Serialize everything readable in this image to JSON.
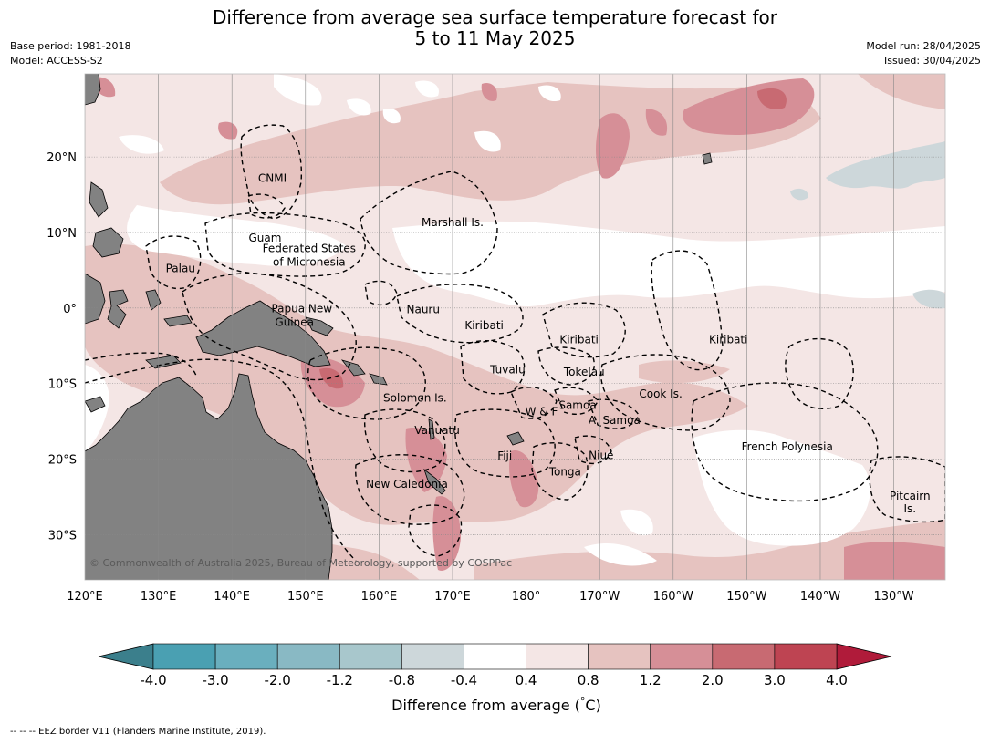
{
  "title_line1": "Difference from average sea surface temperature forecast for",
  "title_line2": "5 to 11 May 2025",
  "base_period": "Base period: 1981-2018",
  "model": "Model: ACCESS-S2",
  "model_run": "Model run: 28/04/2025",
  "issued": "Issued: 30/04/2025",
  "copyright": "© Commonwealth of Australia 2025, Bureau of Meteorology, supported by COSPPac",
  "footnote": "--  --  -- EEZ border V11 (Flanders Marine Institute, 2019).",
  "map": {
    "lon_ticks": [
      "120°E",
      "130°E",
      "140°E",
      "150°E",
      "160°E",
      "170°E",
      "180°",
      "170°W",
      "160°W",
      "150°W",
      "140°W",
      "130°W"
    ],
    "lon_values": [
      120,
      130,
      140,
      150,
      160,
      170,
      180,
      190,
      200,
      210,
      220,
      230
    ],
    "lat_ticks": [
      "20°N",
      "10°N",
      "0°",
      "10°S",
      "20°S",
      "30°S"
    ],
    "lat_values": [
      20,
      10,
      0,
      -10,
      -20,
      -30
    ],
    "lon_range": [
      120,
      237
    ],
    "lat_range": [
      -36,
      31
    ],
    "colors": {
      "ocean_base": "#f4e6e5",
      "land": "#828282",
      "grid": "#888888"
    },
    "regions": [
      {
        "name": "CNMI",
        "lon": 145.5,
        "lat": 17.2
      },
      {
        "name": "Guam",
        "lon": 144.5,
        "lat": 9.3
      },
      {
        "name": "Marshall Is.",
        "lon": 170,
        "lat": 11.3
      },
      {
        "name": "Federated States",
        "lon": 150.5,
        "lat": 7.9
      },
      {
        "name": "of Micronesia",
        "lon": 150.5,
        "lat": 6.1
      },
      {
        "name": "Palau",
        "lon": 133,
        "lat": 5.2
      },
      {
        "name": "Papua New",
        "lon": 149.5,
        "lat": -0.1
      },
      {
        "name": "Guinea",
        "lon": 148.5,
        "lat": -1.9
      },
      {
        "name": "Nauru",
        "lon": 166,
        "lat": -0.2
      },
      {
        "name": "Kiribati",
        "lon": 174.3,
        "lat": -2.3
      },
      {
        "name": "Kiribati",
        "lon": 187.2,
        "lat": -4.2
      },
      {
        "name": "Kiribati",
        "lon": 207.5,
        "lat": -4.2
      },
      {
        "name": "Tuvalu",
        "lon": 177.5,
        "lat": -8.2
      },
      {
        "name": "Tokelau",
        "lon": 187.9,
        "lat": -8.5
      },
      {
        "name": "Cook Is.",
        "lon": 198.3,
        "lat": -11.4
      },
      {
        "name": "Solomon Is.",
        "lon": 164.9,
        "lat": -11.9
      },
      {
        "name": "Samoa",
        "lon": 187,
        "lat": -12.9
      },
      {
        "name": "W & F",
        "lon": 182.1,
        "lat": -13.7
      },
      {
        "name": "A. Samoa",
        "lon": 192,
        "lat": -14.9
      },
      {
        "name": "Vanuatu",
        "lon": 167.9,
        "lat": -16.2
      },
      {
        "name": "French Polynesia",
        "lon": 215.5,
        "lat": -18.4
      },
      {
        "name": "Fiji",
        "lon": 177.1,
        "lat": -19.6
      },
      {
        "name": "Niue",
        "lon": 190.2,
        "lat": -19.5
      },
      {
        "name": "Tonga",
        "lon": 185.3,
        "lat": -21.7
      },
      {
        "name": "New Caledonia",
        "lon": 163.8,
        "lat": -23.3
      },
      {
        "name": "Pitcairn",
        "lon": 232.2,
        "lat": -24.9
      },
      {
        "name": "Is.",
        "lon": 232.2,
        "lat": -26.6
      }
    ]
  },
  "colorbar": {
    "title": "Difference from average (",
    "title_degree": "°",
    "title_unit": "C)",
    "labels": [
      "-4.0",
      "-3.0",
      "-2.0",
      "-1.2",
      "-0.8",
      "-0.4",
      "0.4",
      "0.8",
      "1.2",
      "2.0",
      "3.0",
      "4.0"
    ],
    "colors": [
      "#4aa0b2",
      "#6aafbe",
      "#89b9c4",
      "#a8c7cc",
      "#cdd7da",
      "#ffffff",
      "#f4e6e5",
      "#e6c3c0",
      "#d68f97",
      "#c86a72",
      "#be4452"
    ],
    "under_color": "#3b7f8c",
    "over_color": "#b01b3a"
  }
}
